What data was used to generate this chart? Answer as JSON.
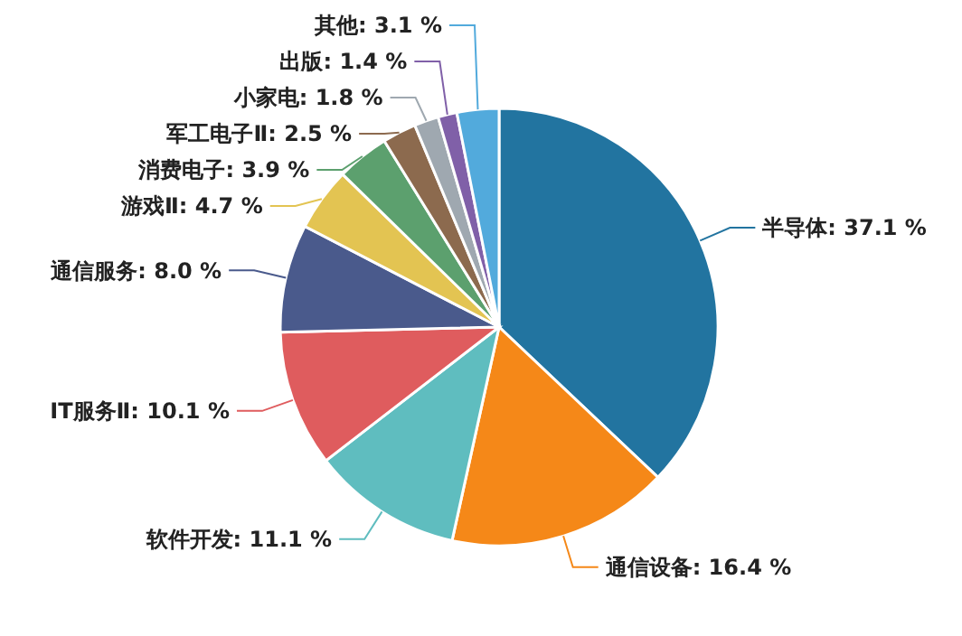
{
  "chart_data": {
    "type": "pie",
    "categories": [
      "半导体",
      "通信设备",
      "软件开发",
      "IT服务Ⅱ",
      "通信服务",
      "游戏Ⅱ",
      "消费电子",
      "军工电子Ⅱ",
      "小家电",
      "出版",
      "其他"
    ],
    "values": [
      37.1,
      16.4,
      11.1,
      10.1,
      8.0,
      4.7,
      3.9,
      2.5,
      1.8,
      1.4,
      3.1
    ],
    "value_labels": [
      "37.1 %",
      "16.4 %",
      "11.1 %",
      "10.1 %",
      "8.0 %",
      "4.7 %",
      "3.9 %",
      "2.5 %",
      "1.8 %",
      "1.4 %",
      "3.1 %"
    ],
    "colors": [
      "#2274a0",
      "#f58818",
      "#5fbdbf",
      "#df5c5e",
      "#4a5a8c",
      "#e3c452",
      "#5ca06e",
      "#8c6a4e",
      "#9fa8b0",
      "#8060a8",
      "#52aadc"
    ]
  }
}
